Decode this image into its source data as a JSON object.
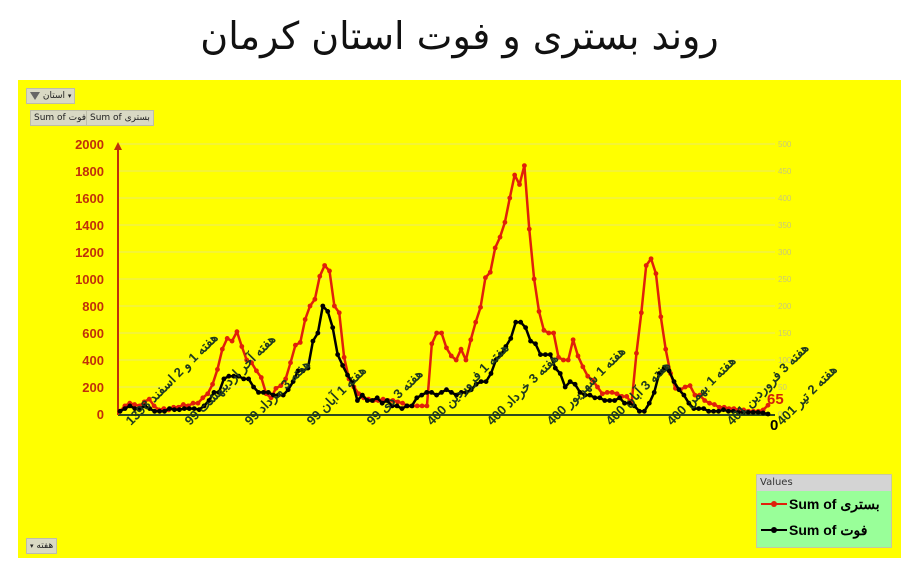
{
  "title": "روند بستری و فوت استان کرمان",
  "filters": {
    "province_filter_label": "استان",
    "value_buttons": [
      "Sum of فوت",
      "Sum of بستری"
    ],
    "axis_field_button": "هفته"
  },
  "legend": {
    "header": "Values",
    "items": [
      {
        "label": "Sum of بستری",
        "color": "#e0200a"
      },
      {
        "label": "Sum of فوت",
        "color": "#000000"
      }
    ]
  },
  "colors": {
    "background": "#ffff00",
    "hospitalized": "#e0200a",
    "deaths": "#000000",
    "left_axis": "#c0300a",
    "right_axis": "#c8c87a"
  },
  "end_labels": {
    "hospitalized": "65",
    "deaths": "0"
  },
  "chart_data": {
    "type": "line",
    "title": "روند بستری و فوت استان کرمان",
    "xlabel": "هفته",
    "ylabel_left": "Sum of بستری",
    "ylabel_right": "Sum of فوت",
    "ylim_left": [
      0,
      2000
    ],
    "ylim_right": [
      0,
      500
    ],
    "yticks_left": [
      0,
      200,
      400,
      600,
      800,
      1000,
      1200,
      1400,
      1600,
      1800,
      2000
    ],
    "yticks_right": [
      0,
      50,
      100,
      150,
      200,
      250,
      300,
      350,
      400,
      450,
      500
    ],
    "grid": true,
    "legend_position": "bottom-right",
    "x_tick_labels": [
      "هفته 1 و 2 اسفند 1398",
      "هفته آخر اردیبهشت 99",
      "هفته 3 مرداد 99",
      "هفته 1 آبان 99",
      "هفته 3 دی 99",
      "هفته 1 فروردین 400",
      "هفته 3 خرداد 400",
      "هفته 1 شهریور 400",
      "هفته 3 آبان 400",
      "هفته 1 بهمن 400",
      "هفته 3 فروردین 401",
      "هفته 2 تیر 401"
    ],
    "series": [
      {
        "name": "Sum of بستری",
        "axis": "left",
        "values": [
          20,
          60,
          80,
          70,
          60,
          90,
          110,
          60,
          30,
          40,
          30,
          50,
          50,
          70,
          60,
          80,
          80,
          120,
          150,
          220,
          330,
          480,
          560,
          540,
          610,
          500,
          400,
          380,
          320,
          270,
          150,
          120,
          190,
          210,
          260,
          380,
          510,
          530,
          700,
          800,
          850,
          1020,
          1100,
          1060,
          800,
          750,
          420,
          260,
          200,
          150,
          120,
          110,
          100,
          100,
          110,
          100,
          100,
          90,
          80,
          60,
          60,
          60,
          60,
          60,
          520,
          600,
          600,
          490,
          430,
          400,
          480,
          400,
          550,
          680,
          790,
          1010,
          1050,
          1230,
          1310,
          1420,
          1600,
          1770,
          1700,
          1840,
          1370,
          1000,
          760,
          620,
          600,
          600,
          420,
          400,
          400,
          550,
          430,
          350,
          280,
          250,
          200,
          150,
          160,
          160,
          150,
          130,
          130,
          80,
          450,
          750,
          1100,
          1150,
          1040,
          720,
          480,
          300,
          190,
          180,
          200,
          210,
          140,
          140,
          100,
          80,
          70,
          50,
          50,
          40,
          40,
          30,
          30,
          20,
          20,
          20,
          30,
          65
        ]
      },
      {
        "name": "Sum of فوت",
        "axis": "right",
        "values": [
          5,
          10,
          15,
          10,
          10,
          15,
          10,
          5,
          5,
          5,
          10,
          8,
          8,
          10,
          10,
          10,
          8,
          15,
          25,
          40,
          40,
          65,
          70,
          70,
          70,
          65,
          65,
          50,
          40,
          40,
          40,
          35,
          35,
          35,
          45,
          60,
          80,
          80,
          85,
          135,
          150,
          200,
          190,
          160,
          110,
          90,
          72,
          58,
          25,
          35,
          25,
          25,
          30,
          20,
          25,
          15,
          15,
          10,
          15,
          15,
          30,
          35,
          40,
          40,
          35,
          40,
          45,
          40,
          35,
          40,
          40,
          45,
          55,
          60,
          60,
          75,
          100,
          110,
          125,
          140,
          170,
          170,
          160,
          135,
          130,
          110,
          110,
          110,
          85,
          75,
          50,
          60,
          55,
          40,
          35,
          35,
          30,
          30,
          25,
          25,
          25,
          30,
          20,
          20,
          15,
          5,
          5,
          20,
          40,
          75,
          85,
          80,
          60,
          45,
          35,
          20,
          10,
          10,
          10,
          5,
          5,
          5,
          8,
          5,
          5,
          3,
          3,
          3,
          3,
          3,
          2,
          0
        ]
      }
    ]
  }
}
